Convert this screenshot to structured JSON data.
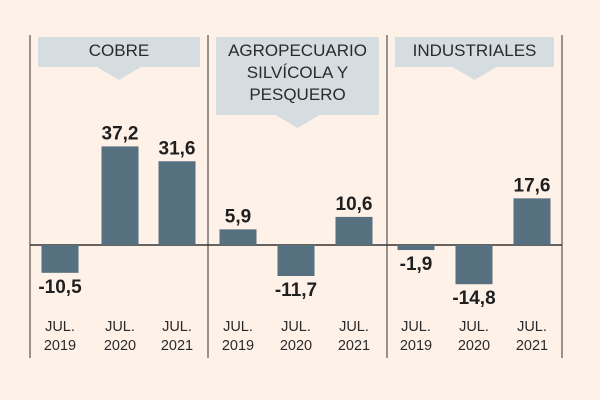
{
  "chart_data": {
    "type": "bar",
    "colors": {
      "bar": "#56707f",
      "banner": "#d6dde1",
      "background": "#fdf1e8",
      "axis": "#333333"
    },
    "ylim": [
      -16,
      40
    ],
    "panels": [
      {
        "title": [
          "COBRE"
        ],
        "categories": [
          [
            "JUL.",
            "2019"
          ],
          [
            "JUL.",
            "2020"
          ],
          [
            "JUL.",
            "2021"
          ]
        ],
        "values": [
          -10.5,
          37.2,
          31.6
        ],
        "labels": [
          "-10,5",
          "37,2",
          "31,6"
        ]
      },
      {
        "title": [
          "AGROPECUARIO",
          "SILVÍCOLA Y",
          "PESQUERO"
        ],
        "categories": [
          [
            "JUL.",
            "2019"
          ],
          [
            "JUL.",
            "2020"
          ],
          [
            "JUL.",
            "2021"
          ]
        ],
        "values": [
          5.9,
          -11.7,
          10.6
        ],
        "labels": [
          "5,9",
          "-11,7",
          "10,6"
        ]
      },
      {
        "title": [
          "INDUSTRIALES"
        ],
        "categories": [
          [
            "JUL.",
            "2019"
          ],
          [
            "JUL.",
            "2020"
          ],
          [
            "JUL.",
            "2021"
          ]
        ],
        "values": [
          -1.9,
          -14.8,
          17.6
        ],
        "labels": [
          "-1,9",
          "-14,8",
          "17,6"
        ]
      }
    ]
  }
}
